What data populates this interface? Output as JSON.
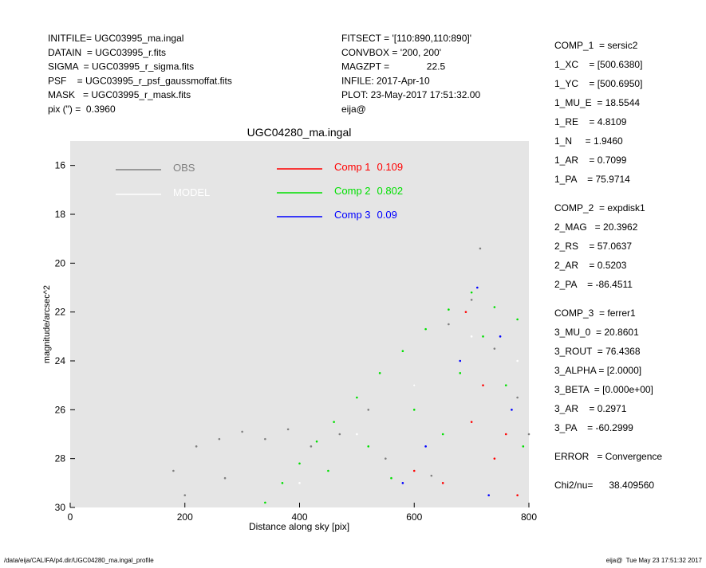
{
  "header": {
    "left": [
      "INITFILE= UGC03995_ma.ingal",
      "DATAIN  = UGC03995_r.fits",
      "SIGMA  = UGC03995_r_sigma.fits",
      "PSF    = UGC03995_r_psf_gaussmoffat.fits",
      "MASK   = UGC03995_r_mask.fits",
      "pix (\") =  0.3960"
    ],
    "middle": [
      "FITSECT = '[110:890,110:890]'",
      "CONVBOX = '200, 200'",
      "MAGZPT =              22.5",
      "INFILE: 2017-Apr-10",
      "PLOT: 23-May-2017 17:51:32.00",
      "eija@"
    ]
  },
  "params": [
    [
      "COMP_1  = sersic2",
      "1_XC    = [500.6380]",
      "1_YC    = [500.6950]",
      "1_MU_E  = 18.5544",
      "1_RE    = 4.8109",
      "1_N     = 1.9460",
      "1_AR    = 0.7099",
      "1_PA    = 75.9714"
    ],
    [
      "COMP_2  = expdisk1",
      "2_MAG   = 20.3962",
      "2_RS    = 57.0637",
      "2_AR    = 0.5203",
      "2_PA    = -86.4511"
    ],
    [
      "COMP_3  = ferrer1",
      "3_MU_0  = 20.8601",
      "3_ROUT  = 76.4368",
      "3_ALPHA = [2.0000]",
      "3_BETA  = [0.000e+00]",
      "3_AR    = 0.2971",
      "3_PA    = -60.2999"
    ],
    [
      "ERROR   = Convergence"
    ],
    [
      "Chi2/nu=      38.409560"
    ]
  ],
  "footer": {
    "left": "/data/eija/CALIFA/p4.dir/UGC04280_ma.ingal_profile",
    "right": "eija@  Tue May 23 17:51:32 2017"
  },
  "chart_data": {
    "type": "scatter",
    "title": "UGC04280_ma.ingal",
    "xlabel": "Distance along sky [pix]",
    "ylabel": "magnitude/arcsec^2",
    "xlim": [
      0,
      800
    ],
    "ylim": [
      30,
      15
    ],
    "xticks": [
      0,
      200,
      400,
      600,
      800
    ],
    "yticks": [
      16,
      18,
      20,
      22,
      24,
      26,
      28,
      30
    ],
    "series": [
      {
        "name": "OBS",
        "color": "#808080",
        "x": [
          180,
          220,
          260,
          300,
          340,
          380,
          420,
          470,
          520,
          600,
          660,
          700,
          715,
          740,
          780,
          800,
          550,
          630,
          270,
          200
        ],
        "y": [
          28.5,
          27.5,
          27.2,
          26.9,
          27.2,
          26.8,
          27.5,
          27.0,
          26.0,
          25.0,
          22.5,
          21.5,
          19.4,
          23.5,
          25.5,
          27.0,
          28.0,
          28.7,
          28.8,
          29.5
        ]
      },
      {
        "name": "MODEL",
        "color": "#ffffff",
        "x": [
          400,
          500,
          600,
          700,
          780
        ],
        "y": [
          29.0,
          27.0,
          25.0,
          23.0,
          24.0
        ]
      },
      {
        "name": "Comp 1",
        "fraction": 0.109,
        "color": "#ff0000",
        "x": [
          690,
          720,
          760,
          600,
          650,
          780,
          700,
          740
        ],
        "y": [
          22.0,
          25.0,
          27.0,
          28.5,
          29.0,
          29.5,
          26.5,
          28.0
        ]
      },
      {
        "name": "Comp 2",
        "fraction": 0.802,
        "color": "#00e000",
        "x": [
          340,
          370,
          400,
          430,
          460,
          500,
          540,
          580,
          620,
          660,
          700,
          740,
          780,
          450,
          520,
          600,
          680,
          760,
          560,
          650,
          720,
          790
        ],
        "y": [
          29.8,
          29.0,
          28.2,
          27.3,
          26.5,
          25.5,
          24.5,
          23.6,
          22.7,
          21.9,
          21.2,
          21.8,
          22.3,
          28.5,
          27.5,
          26.0,
          24.5,
          25.0,
          28.8,
          27.0,
          23.0,
          27.5
        ]
      },
      {
        "name": "Comp 3",
        "fraction": 0.09,
        "color": "#0000ff",
        "x": [
          710,
          680,
          750,
          620,
          770,
          580,
          730
        ],
        "y": [
          21.0,
          24.0,
          23.0,
          27.5,
          26.0,
          29.0,
          29.5
        ]
      }
    ]
  }
}
